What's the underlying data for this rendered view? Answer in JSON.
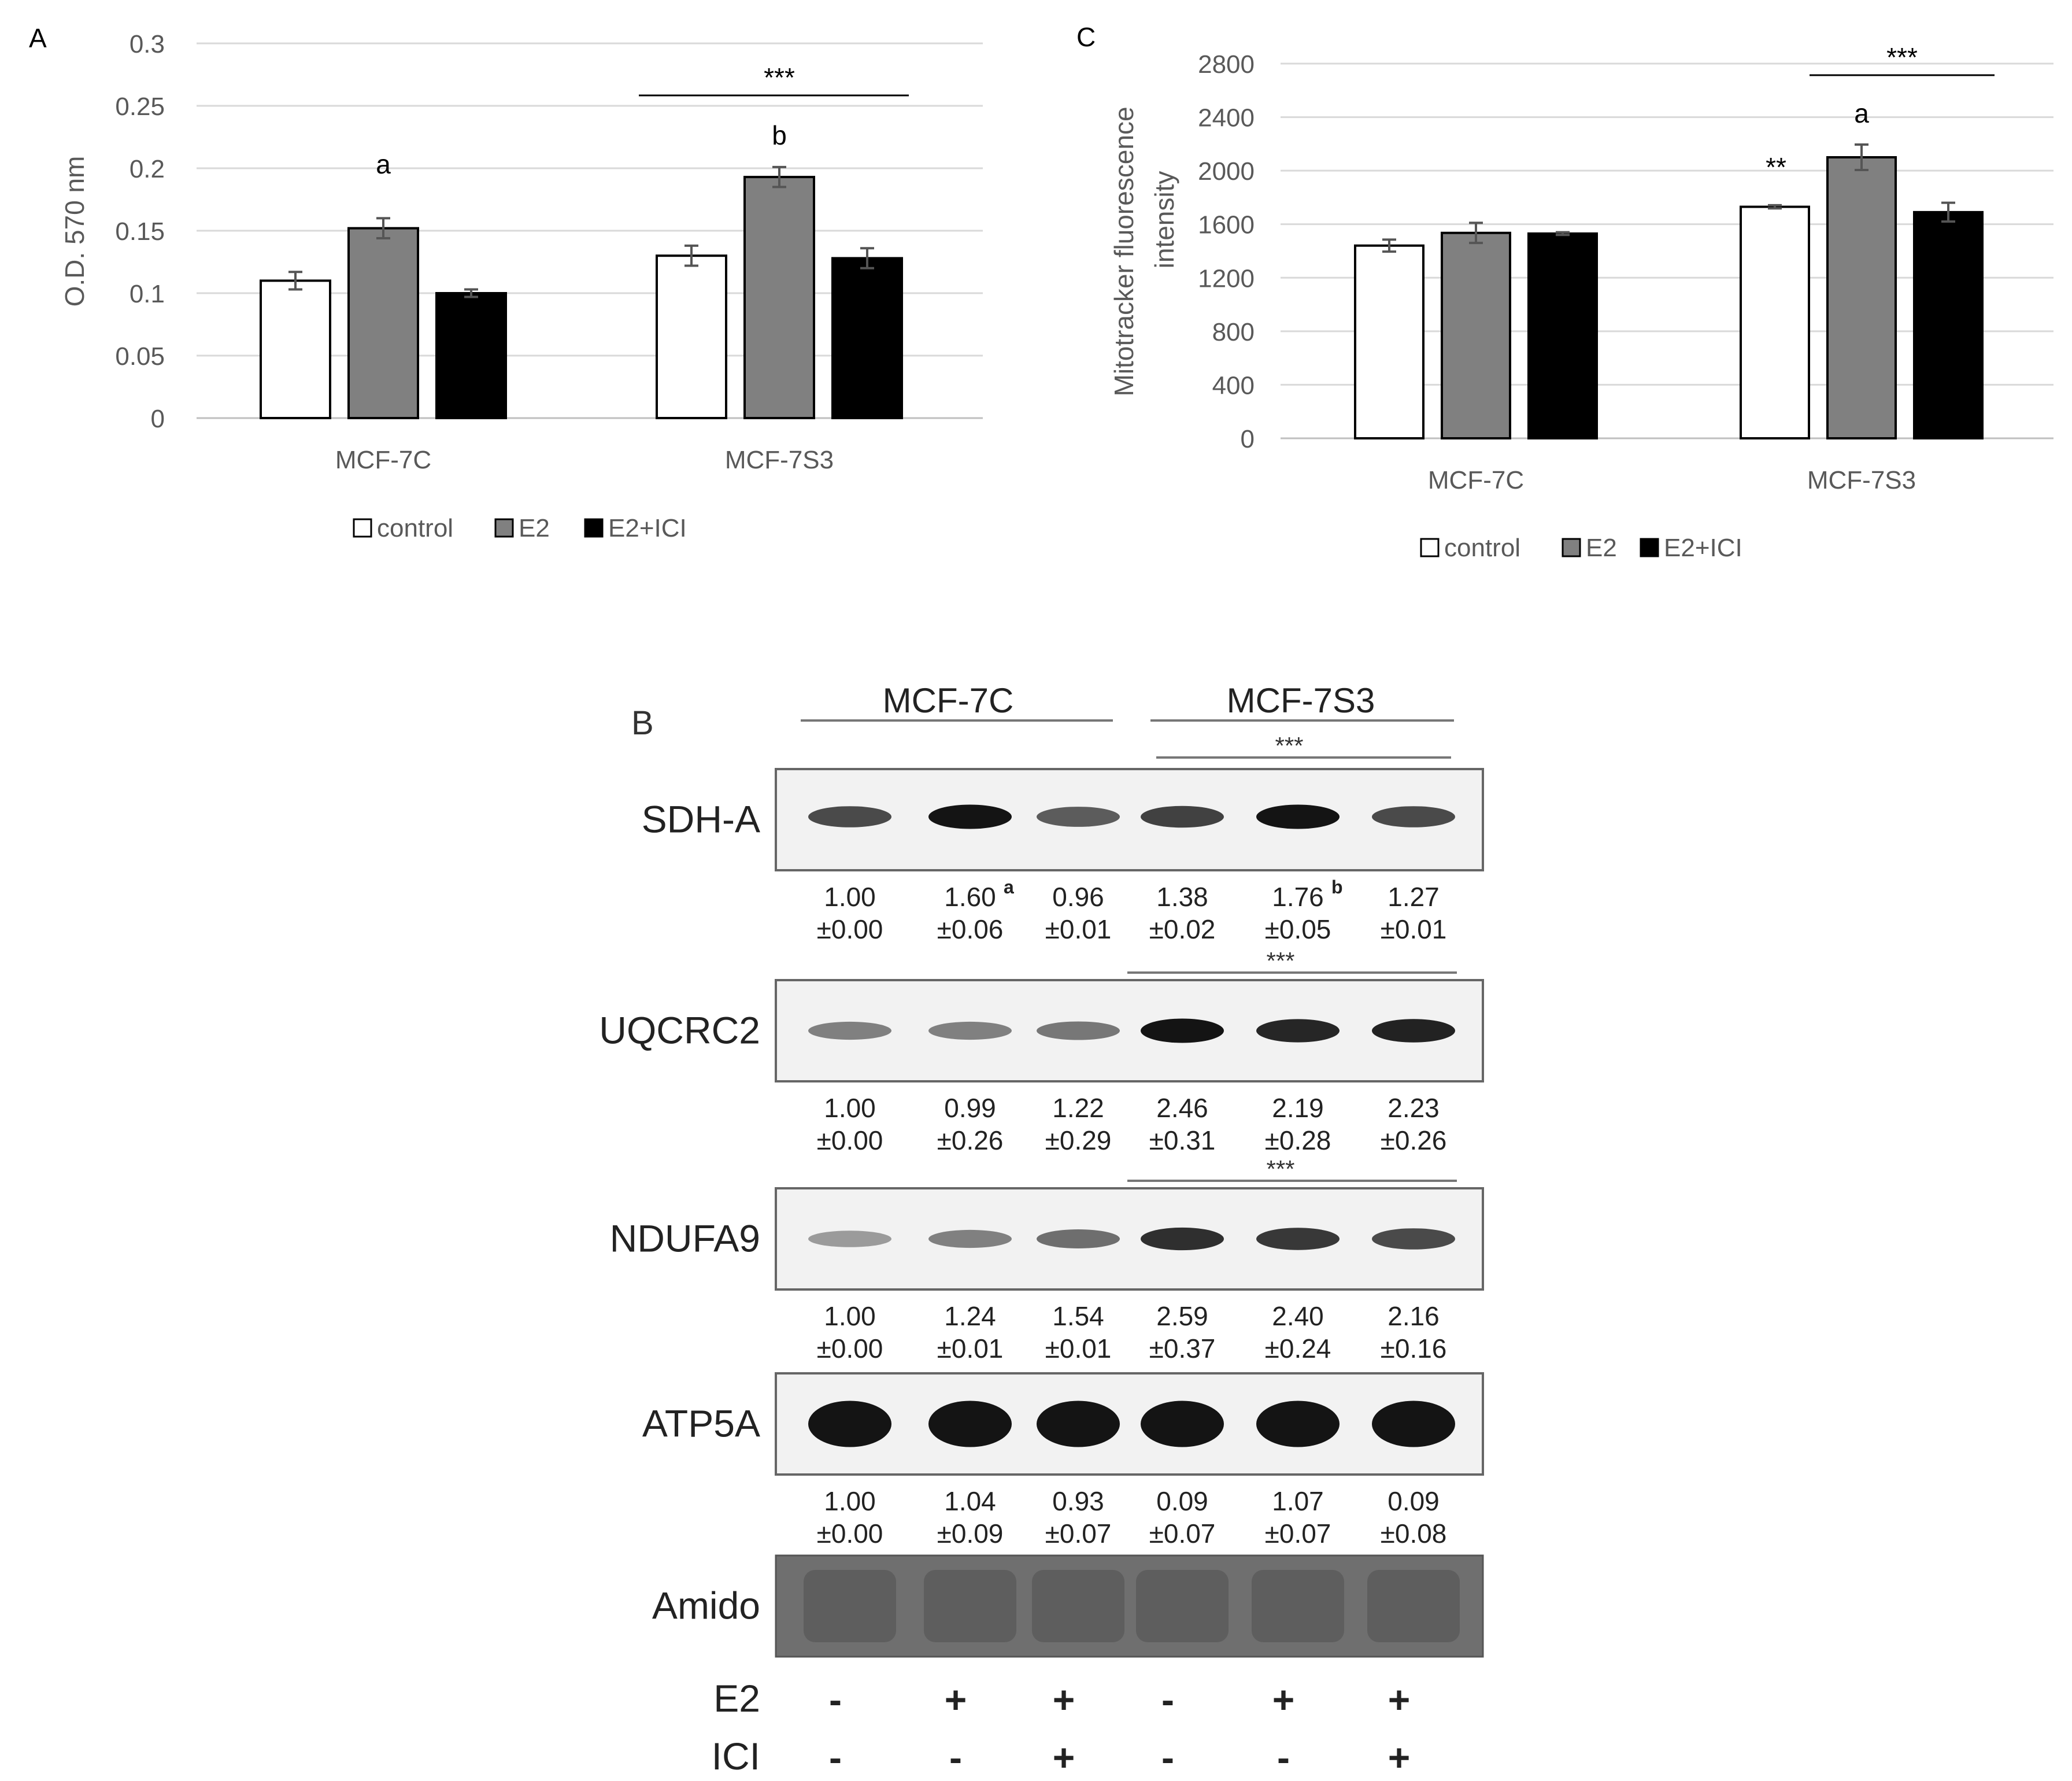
{
  "chart_data": [
    {
      "panel": "A",
      "type": "bar",
      "ylabel": "O.D. 570 nm",
      "ylim": [
        0,
        0.3
      ],
      "yticks": [
        "0",
        "0.05",
        "0.1",
        "0.15",
        "0.2",
        "0.25",
        "0.3"
      ],
      "categories": [
        "MCF-7C",
        "MCF-7S3"
      ],
      "series": [
        {
          "name": "control",
          "color": "#ffffff",
          "values": [
            0.11,
            0.13
          ],
          "errors": [
            0.007,
            0.008
          ]
        },
        {
          "name": "E2",
          "color": "#808080",
          "values": [
            0.152,
            0.193
          ],
          "errors": [
            0.008,
            0.008
          ]
        },
        {
          "name": "E2+ICI",
          "color": "#000000",
          "values": [
            0.1,
            0.128
          ],
          "errors": [
            0.003,
            0.008
          ]
        }
      ],
      "annotations": {
        "a": "a",
        "b": "b",
        "sig": "***"
      },
      "legend": [
        "control",
        "E2",
        "E2+ICI"
      ]
    },
    {
      "panel": "C",
      "type": "bar",
      "ylabel": [
        "Mitotracker fluorescence",
        "intensity"
      ],
      "ylim": [
        0,
        2800
      ],
      "yticks": [
        "0",
        "400",
        "800",
        "1200",
        "1600",
        "2000",
        "2400",
        "2800"
      ],
      "categories": [
        "MCF-7C",
        "MCF-7S3"
      ],
      "series": [
        {
          "name": "control",
          "color": "#ffffff",
          "values": [
            1440,
            1730
          ],
          "errors": [
            45,
            12
          ]
        },
        {
          "name": "E2",
          "color": "#808080",
          "values": [
            1535,
            2100
          ],
          "errors": [
            75,
            95
          ]
        },
        {
          "name": "E2+ICI",
          "color": "#000000",
          "values": [
            1530,
            1690
          ],
          "errors": [
            10,
            70
          ]
        }
      ],
      "annotations": {
        "a": "a",
        "double": "**",
        "sig": "***"
      },
      "legend": [
        "control",
        "E2",
        "E2+ICI"
      ]
    }
  ],
  "panel_b": {
    "label": "B",
    "groups": [
      "MCF-7C",
      "MCF-7S3"
    ],
    "sig": "***",
    "blots": [
      {
        "name": "SDH-A",
        "values": [
          "1.00",
          "1.60",
          "0.96",
          "1.38",
          "1.76",
          "1.27"
        ],
        "sds": [
          "±0.00",
          "±0.06",
          "±0.01",
          "±0.02",
          "±0.05",
          "±0.01"
        ],
        "sup_a": "a",
        "sup_b": "b",
        "intensity": [
          0.7,
          1.0,
          0.6,
          0.75,
          1.0,
          0.7
        ]
      },
      {
        "name": "UQCRC2",
        "values": [
          "1.00",
          "0.99",
          "1.22",
          "2.46",
          "2.19",
          "2.23"
        ],
        "sds": [
          "±0.00",
          "±0.26",
          "±0.29",
          "±0.31",
          "±0.28",
          "±0.26"
        ],
        "intensity": [
          0.4,
          0.4,
          0.45,
          1.0,
          0.9,
          0.92
        ]
      },
      {
        "name": "NDUFA9",
        "values": [
          "1.00",
          "1.24",
          "1.54",
          "2.59",
          "2.40",
          "2.16"
        ],
        "sds": [
          "±0.00",
          "±0.01",
          "±0.01",
          "±0.37",
          "±0.24",
          "±0.16"
        ],
        "intensity": [
          0.25,
          0.4,
          0.5,
          0.85,
          0.8,
          0.7
        ]
      },
      {
        "name": "ATP5A",
        "values": [
          "1.00",
          "1.04",
          "0.93",
          "0.09",
          "1.07",
          "0.09"
        ],
        "sds": [
          "±0.00",
          "±0.09",
          "±0.07",
          "±0.07",
          "±0.07",
          "±0.08"
        ],
        "intensity": [
          1.0,
          1.0,
          1.0,
          1.0,
          1.0,
          1.0
        ]
      }
    ],
    "loading": "Amido",
    "treatments": [
      {
        "label": "E2",
        "marks": [
          "-",
          "+",
          "+",
          "-",
          "+",
          "+"
        ]
      },
      {
        "label": "ICI",
        "marks": [
          "-",
          "-",
          "+",
          "-",
          "-",
          "+"
        ]
      }
    ]
  }
}
